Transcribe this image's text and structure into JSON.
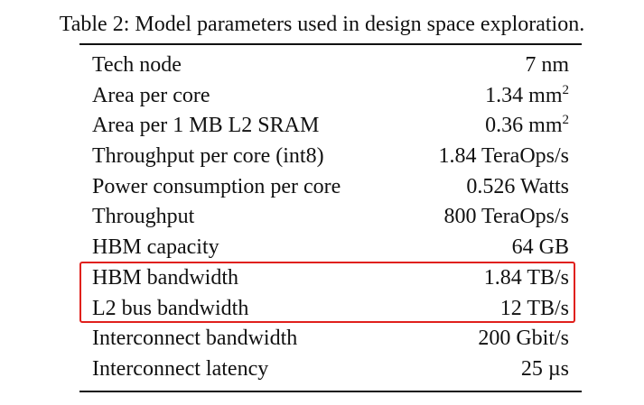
{
  "caption": "Table 2: Model parameters used in design space exploration.",
  "highlight_color": "#e0201c",
  "rows": [
    {
      "param": "Tech node",
      "value": "7 nm",
      "sup": ""
    },
    {
      "param": "Area per core",
      "value": "1.34 mm",
      "sup": "2"
    },
    {
      "param": "Area per 1 MB L2 SRAM",
      "value": "0.36 mm",
      "sup": "2"
    },
    {
      "param": "Throughput per core (int8)",
      "value": "1.84 TeraOps/s",
      "sup": ""
    },
    {
      "param": "Power consumption per core",
      "value": "0.526 Watts",
      "sup": ""
    },
    {
      "param": "Throughput",
      "value": "800 TeraOps/s",
      "sup": ""
    },
    {
      "param": "HBM capacity",
      "value": "64 GB",
      "sup": ""
    },
    {
      "param": "HBM bandwidth",
      "value": "1.84 TB/s",
      "sup": ""
    },
    {
      "param": "L2 bus bandwidth",
      "value": "12 TB/s",
      "sup": ""
    },
    {
      "param": "Interconnect bandwidth",
      "value": "200 Gbit/s",
      "sup": ""
    },
    {
      "param": "Interconnect latency",
      "value": "25 µs",
      "sup": ""
    }
  ]
}
